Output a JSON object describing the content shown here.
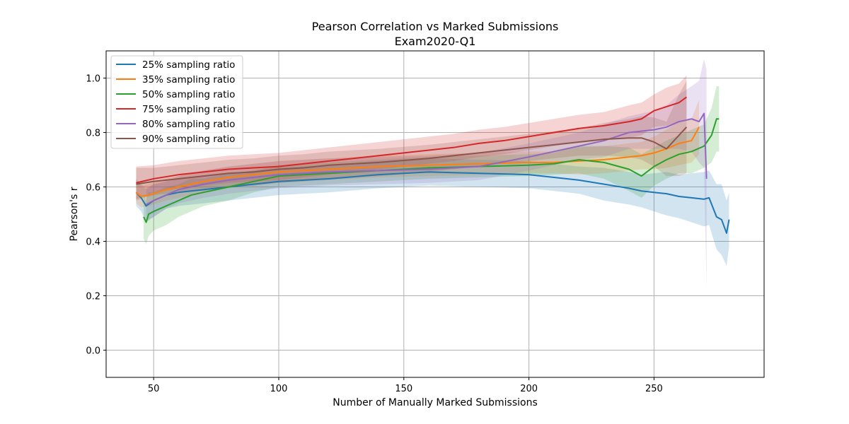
{
  "chart_data": {
    "type": "line",
    "title": "Pearson Correlation vs Marked Submissions",
    "subtitle": "Exam2020-Q1",
    "xlabel": "Number of Manually Marked Submissions",
    "ylabel": "Pearson's r",
    "xlim": [
      31,
      294
    ],
    "ylim": [
      -0.1,
      1.1
    ],
    "xticks": [
      50,
      100,
      150,
      200,
      250
    ],
    "yticks": [
      0.0,
      0.2,
      0.4,
      0.6,
      0.8,
      1.0
    ],
    "xtick_labels": [
      "50",
      "100",
      "150",
      "200",
      "250"
    ],
    "ytick_labels": [
      "0.0",
      "0.2",
      "0.4",
      "0.6",
      "0.8",
      "1.0"
    ],
    "grid": true,
    "legend_position": "top-left",
    "series": [
      {
        "name": "25% sampling ratio",
        "color": "#1f77b4",
        "x": [
          43,
          45,
          47,
          50,
          55,
          60,
          70,
          80,
          90,
          100,
          120,
          140,
          160,
          180,
          200,
          210,
          220,
          230,
          240,
          245,
          250,
          255,
          260,
          265,
          270,
          272,
          275,
          277,
          279,
          280
        ],
        "y": [
          0.58,
          0.56,
          0.53,
          0.55,
          0.57,
          0.58,
          0.59,
          0.6,
          0.61,
          0.62,
          0.63,
          0.645,
          0.655,
          0.65,
          0.645,
          0.635,
          0.625,
          0.61,
          0.595,
          0.585,
          0.58,
          0.575,
          0.565,
          0.56,
          0.555,
          0.56,
          0.49,
          0.48,
          0.43,
          0.48
        ],
        "band": [
          0.05,
          0.05,
          0.06,
          0.06,
          0.05,
          0.05,
          0.05,
          0.05,
          0.05,
          0.05,
          0.05,
          0.05,
          0.05,
          0.05,
          0.05,
          0.05,
          0.05,
          0.06,
          0.06,
          0.06,
          0.07,
          0.08,
          0.08,
          0.09,
          0.1,
          0.1,
          0.12,
          0.13,
          0.12,
          0.1
        ]
      },
      {
        "name": "35% sampling ratio",
        "color": "#ff7f0e",
        "x": [
          43,
          45,
          48,
          50,
          55,
          60,
          70,
          80,
          90,
          100,
          120,
          140,
          160,
          180,
          200,
          210,
          220,
          230,
          240,
          245,
          250,
          255,
          260,
          265,
          268
        ],
        "y": [
          0.58,
          0.565,
          0.57,
          0.575,
          0.59,
          0.6,
          0.62,
          0.635,
          0.645,
          0.655,
          0.665,
          0.675,
          0.68,
          0.685,
          0.69,
          0.69,
          0.695,
          0.7,
          0.71,
          0.715,
          0.725,
          0.74,
          0.76,
          0.77,
          0.82
        ],
        "band": [
          0.04,
          0.04,
          0.04,
          0.04,
          0.04,
          0.04,
          0.04,
          0.04,
          0.04,
          0.04,
          0.04,
          0.04,
          0.04,
          0.04,
          0.04,
          0.04,
          0.05,
          0.05,
          0.05,
          0.05,
          0.06,
          0.07,
          0.08,
          0.08,
          0.1
        ]
      },
      {
        "name": "50% sampling ratio",
        "color": "#2ca02c",
        "x": [
          46,
          47,
          48,
          50,
          55,
          60,
          65,
          70,
          75,
          80,
          90,
          100,
          120,
          140,
          160,
          180,
          200,
          210,
          220,
          230,
          240,
          245,
          250,
          255,
          260,
          265,
          270,
          273,
          275,
          276
        ],
        "y": [
          0.49,
          0.47,
          0.5,
          0.51,
          0.53,
          0.55,
          0.57,
          0.58,
          0.59,
          0.6,
          0.62,
          0.64,
          0.65,
          0.66,
          0.67,
          0.675,
          0.68,
          0.685,
          0.7,
          0.69,
          0.665,
          0.64,
          0.675,
          0.7,
          0.72,
          0.73,
          0.75,
          0.79,
          0.85,
          0.85
        ],
        "band": [
          0.08,
          0.08,
          0.08,
          0.07,
          0.07,
          0.06,
          0.06,
          0.05,
          0.05,
          0.05,
          0.04,
          0.04,
          0.04,
          0.04,
          0.04,
          0.04,
          0.04,
          0.04,
          0.05,
          0.06,
          0.08,
          0.08,
          0.07,
          0.07,
          0.07,
          0.08,
          0.08,
          0.1,
          0.12,
          0.12
        ]
      },
      {
        "name": "75% sampling ratio",
        "color": "#d62728",
        "x": [
          43,
          50,
          60,
          70,
          80,
          90,
          100,
          110,
          120,
          130,
          140,
          150,
          160,
          170,
          180,
          190,
          200,
          210,
          220,
          230,
          240,
          245,
          250,
          255,
          260,
          263
        ],
        "y": [
          0.615,
          0.63,
          0.645,
          0.655,
          0.665,
          0.67,
          0.675,
          0.685,
          0.695,
          0.705,
          0.715,
          0.725,
          0.735,
          0.745,
          0.76,
          0.77,
          0.785,
          0.8,
          0.815,
          0.825,
          0.84,
          0.85,
          0.88,
          0.895,
          0.91,
          0.93
        ],
        "band": [
          0.06,
          0.05,
          0.05,
          0.05,
          0.05,
          0.05,
          0.05,
          0.05,
          0.05,
          0.05,
          0.05,
          0.05,
          0.05,
          0.05,
          0.05,
          0.05,
          0.05,
          0.05,
          0.05,
          0.05,
          0.06,
          0.06,
          0.06,
          0.07,
          0.07,
          0.08
        ]
      },
      {
        "name": "80% sampling ratio",
        "color": "#9467bd",
        "x": [
          47,
          50,
          55,
          60,
          70,
          80,
          90,
          100,
          120,
          140,
          160,
          180,
          200,
          210,
          220,
          230,
          240,
          250,
          255,
          260,
          265,
          268,
          270,
          271
        ],
        "y": [
          0.535,
          0.55,
          0.57,
          0.59,
          0.61,
          0.625,
          0.635,
          0.645,
          0.655,
          0.66,
          0.665,
          0.675,
          0.71,
          0.73,
          0.75,
          0.77,
          0.8,
          0.81,
          0.82,
          0.84,
          0.85,
          0.84,
          0.87,
          0.63
        ],
        "band": [
          0.06,
          0.06,
          0.05,
          0.05,
          0.05,
          0.05,
          0.05,
          0.05,
          0.05,
          0.05,
          0.05,
          0.05,
          0.05,
          0.05,
          0.05,
          0.06,
          0.06,
          0.07,
          0.08,
          0.1,
          0.12,
          0.15,
          0.2,
          0.4
        ]
      },
      {
        "name": "90% sampling ratio",
        "color": "#8c564b",
        "x": [
          43,
          50,
          60,
          70,
          80,
          90,
          100,
          110,
          120,
          140,
          160,
          180,
          200,
          210,
          220,
          230,
          240,
          245,
          250,
          255,
          260,
          263
        ],
        "y": [
          0.61,
          0.62,
          0.63,
          0.64,
          0.65,
          0.655,
          0.665,
          0.67,
          0.68,
          0.69,
          0.705,
          0.725,
          0.745,
          0.755,
          0.765,
          0.775,
          0.78,
          0.78,
          0.765,
          0.74,
          0.79,
          0.82
        ],
        "band": [
          0.06,
          0.05,
          0.05,
          0.05,
          0.05,
          0.05,
          0.05,
          0.05,
          0.05,
          0.05,
          0.05,
          0.05,
          0.05,
          0.05,
          0.05,
          0.06,
          0.07,
          0.08,
          0.09,
          0.1,
          0.15,
          0.17
        ]
      }
    ]
  }
}
